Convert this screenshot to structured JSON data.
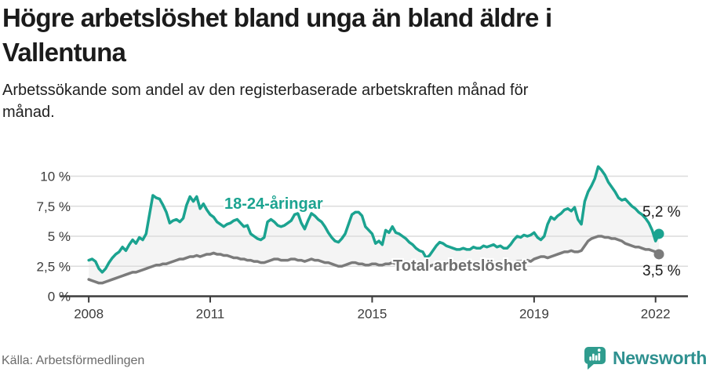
{
  "header": {
    "title_lines": [
      "Högre arbetslöshet bland unga än bland äldre i",
      "Vallentuna"
    ],
    "subtitle_lines": [
      "Arbetssökande som andel av den registerbaserade arbetskraften månad för",
      "månad."
    ]
  },
  "footer": {
    "source": "Källa: Arbetsförmedlingen",
    "brand": "Newsworthy",
    "brand_color": "#2f9190",
    "logo_color": "#2f9c8e"
  },
  "chart_data": {
    "type": "line",
    "title": "Högre arbetslöshet bland unga än bland äldre i Vallentuna",
    "unit": "%",
    "frequency": "monthly",
    "x_start_year": 2008,
    "x_end_label": "2022-02",
    "x_ticks": [
      2008,
      2011,
      2015,
      2019,
      2022
    ],
    "y_ticks": [
      {
        "value": 0,
        "label": "0 %"
      },
      {
        "value": 2.5,
        "label": "2,5 %"
      },
      {
        "value": 5,
        "label": "5 %"
      },
      {
        "value": 7.5,
        "label": "7,5 %"
      },
      {
        "value": 10,
        "label": "10 %"
      }
    ],
    "y_domain": [
      0,
      10.8
    ],
    "grid": true,
    "band_fill_color": "#f4f4f4",
    "grid_color": "#dcdcdc",
    "axis_color": "#3c3c3c",
    "series": [
      {
        "name": "18-24-åringar",
        "color": "#1ba390",
        "end_label": "5,2 %",
        "end_value": 5.2,
        "values": [
          3.0,
          3.1,
          2.9,
          2.3,
          2.0,
          2.3,
          2.8,
          3.2,
          3.5,
          3.7,
          4.1,
          3.8,
          4.3,
          4.7,
          4.4,
          4.9,
          4.7,
          5.2,
          6.8,
          8.4,
          8.2,
          8.1,
          7.6,
          7.0,
          6.1,
          6.3,
          6.4,
          6.2,
          6.5,
          7.6,
          8.3,
          7.9,
          8.3,
          7.3,
          7.7,
          7.2,
          6.8,
          6.6,
          6.2,
          6.0,
          5.8,
          6.0,
          6.1,
          6.3,
          6.4,
          6.1,
          5.8,
          5.9,
          5.2,
          5.0,
          4.8,
          4.7,
          4.9,
          6.2,
          6.4,
          6.2,
          5.9,
          5.8,
          5.9,
          6.1,
          6.3,
          6.8,
          6.9,
          6.1,
          5.6,
          6.3,
          6.9,
          6.7,
          6.4,
          6.2,
          5.8,
          5.3,
          4.9,
          4.6,
          4.5,
          4.8,
          5.2,
          6.0,
          6.8,
          7.0,
          7.0,
          6.7,
          5.8,
          5.5,
          5.2,
          4.4,
          4.6,
          4.3,
          5.5,
          5.3,
          5.8,
          5.3,
          5.2,
          5.0,
          4.8,
          4.5,
          4.3,
          4.0,
          3.8,
          3.7,
          3.2,
          3.4,
          3.8,
          4.2,
          4.5,
          4.4,
          4.2,
          4.1,
          4.0,
          3.9,
          3.9,
          4.0,
          3.9,
          3.9,
          4.1,
          4.0,
          4.0,
          4.2,
          4.1,
          4.2,
          4.3,
          4.1,
          4.2,
          4.0,
          4.0,
          4.3,
          4.7,
          5.0,
          4.9,
          5.1,
          5.0,
          5.1,
          5.3,
          4.9,
          4.7,
          5.0,
          6.0,
          6.6,
          6.4,
          6.7,
          6.9,
          7.2,
          7.3,
          7.1,
          7.4,
          6.4,
          6.0,
          7.9,
          8.7,
          9.2,
          9.8,
          10.8,
          10.5,
          10.1,
          9.5,
          9.1,
          8.7,
          8.2,
          8.0,
          8.1,
          7.8,
          7.5,
          7.3,
          7.0,
          6.8,
          6.5,
          6.1,
          5.5,
          4.6,
          5.2
        ]
      },
      {
        "name": "Total arbetslöshet",
        "color": "#7b7b7b",
        "end_label": "3,5 %",
        "end_value": 3.5,
        "values": [
          1.4,
          1.3,
          1.2,
          1.1,
          1.1,
          1.2,
          1.3,
          1.4,
          1.5,
          1.6,
          1.7,
          1.8,
          1.9,
          2.0,
          2.0,
          2.1,
          2.2,
          2.3,
          2.4,
          2.5,
          2.6,
          2.6,
          2.7,
          2.7,
          2.8,
          2.9,
          3.0,
          3.1,
          3.1,
          3.2,
          3.3,
          3.3,
          3.4,
          3.3,
          3.4,
          3.5,
          3.5,
          3.6,
          3.5,
          3.5,
          3.4,
          3.4,
          3.3,
          3.2,
          3.2,
          3.1,
          3.1,
          3.0,
          3.0,
          2.9,
          2.9,
          2.8,
          2.8,
          2.9,
          3.0,
          3.1,
          3.1,
          3.0,
          3.0,
          3.0,
          3.1,
          3.1,
          3.0,
          3.0,
          2.9,
          3.0,
          3.1,
          3.0,
          3.0,
          2.9,
          2.8,
          2.8,
          2.7,
          2.6,
          2.5,
          2.5,
          2.6,
          2.7,
          2.8,
          2.8,
          2.7,
          2.7,
          2.6,
          2.6,
          2.7,
          2.7,
          2.6,
          2.6,
          2.7,
          2.7,
          2.8,
          2.7,
          2.7,
          2.6,
          2.6,
          2.6,
          2.7,
          2.6,
          2.6,
          2.5,
          2.5,
          2.5,
          2.6,
          2.7,
          2.7,
          2.6,
          2.6,
          2.6,
          2.6,
          2.6,
          2.5,
          2.5,
          2.5,
          2.5,
          2.6,
          2.6,
          2.6,
          2.7,
          2.7,
          2.7,
          2.7,
          2.7,
          2.6,
          2.6,
          2.6,
          2.7,
          2.8,
          2.9,
          2.9,
          3.0,
          3.0,
          2.9,
          3.1,
          3.2,
          3.3,
          3.3,
          3.2,
          3.3,
          3.4,
          3.5,
          3.6,
          3.7,
          3.7,
          3.8,
          3.7,
          3.7,
          3.8,
          4.2,
          4.6,
          4.8,
          4.9,
          5.0,
          5.0,
          4.9,
          4.9,
          4.8,
          4.8,
          4.7,
          4.6,
          4.4,
          4.3,
          4.2,
          4.1,
          4.1,
          4.0,
          3.9,
          3.9,
          3.8,
          3.7,
          3.5
        ]
      }
    ]
  }
}
